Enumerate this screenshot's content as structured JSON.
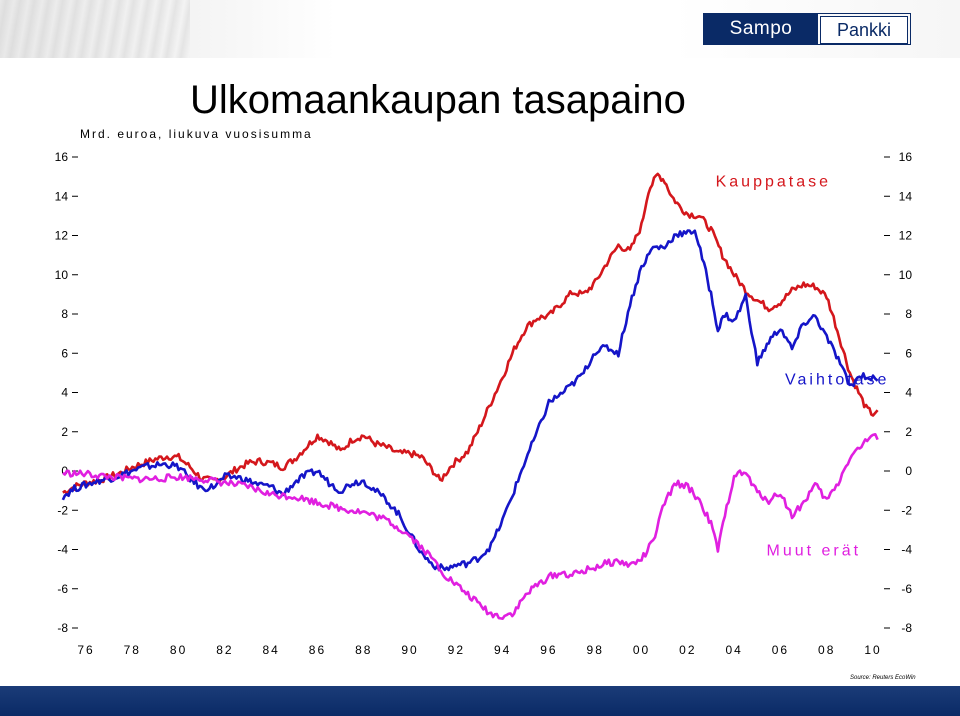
{
  "logo": {
    "left": "Sampo",
    "right": "Pankki"
  },
  "chart_data": {
    "type": "line",
    "title": "Ulkomaankaupan tasapaino",
    "subtitle": "Mrd. euroa, liukuva vuosisumma",
    "ylim": [
      -8,
      16
    ],
    "xlim": [
      1975,
      2010.5
    ],
    "grid": false,
    "y_ticks": [
      "-8",
      "-6",
      "-4",
      "-2",
      "0",
      "2",
      "4",
      "6",
      "8",
      "10",
      "12",
      "14",
      "16"
    ],
    "x_ticks": [
      "76",
      "78",
      "80",
      "82",
      "84",
      "86",
      "88",
      "90",
      "92",
      "94",
      "96",
      "98",
      "00",
      "02",
      "04",
      "06",
      "08",
      "10"
    ],
    "source": "Source: Reuters EcoWin",
    "series": [
      {
        "name": "Kauppatase",
        "color": "#d4171c",
        "label_x": 2003.2,
        "label_y": 14.5,
        "points": [
          [
            1975.0,
            -1.1
          ],
          [
            1975.5,
            -0.8
          ],
          [
            1976.0,
            -0.6
          ],
          [
            1976.5,
            -0.5
          ],
          [
            1977.0,
            -0.3
          ],
          [
            1977.5,
            -0.1
          ],
          [
            1978.0,
            0.2
          ],
          [
            1978.5,
            0.4
          ],
          [
            1979.0,
            0.6
          ],
          [
            1979.5,
            0.75
          ],
          [
            1980.0,
            0.7
          ],
          [
            1980.5,
            0.2
          ],
          [
            1981.0,
            -0.4
          ],
          [
            1981.5,
            -0.5
          ],
          [
            1982.0,
            -0.3
          ],
          [
            1982.5,
            0.1
          ],
          [
            1983.0,
            0.4
          ],
          [
            1983.5,
            0.5
          ],
          [
            1984.0,
            0.4
          ],
          [
            1984.5,
            0.2
          ],
          [
            1985.0,
            0.6
          ],
          [
            1985.5,
            1.2
          ],
          [
            1986.0,
            1.8
          ],
          [
            1986.5,
            1.5
          ],
          [
            1987.0,
            1.0
          ],
          [
            1987.5,
            1.6
          ],
          [
            1988.0,
            1.8
          ],
          [
            1988.5,
            1.4
          ],
          [
            1989.0,
            1.2
          ],
          [
            1989.5,
            0.9
          ],
          [
            1990.0,
            0.9
          ],
          [
            1990.5,
            0.7
          ],
          [
            1991.0,
            0.0
          ],
          [
            1991.3,
            -0.5
          ],
          [
            1991.8,
            0.3
          ],
          [
            1992.5,
            1.0
          ],
          [
            1993.0,
            2.2
          ],
          [
            1993.5,
            3.5
          ],
          [
            1994.0,
            4.8
          ],
          [
            1994.5,
            6.2
          ],
          [
            1995.0,
            7.3
          ],
          [
            1995.5,
            7.8
          ],
          [
            1996.0,
            7.9
          ],
          [
            1996.5,
            8.5
          ],
          [
            1997.0,
            9.1
          ],
          [
            1997.5,
            9.0
          ],
          [
            1998.0,
            9.6
          ],
          [
            1998.5,
            10.6
          ],
          [
            1999.0,
            11.5
          ],
          [
            1999.5,
            11.2
          ],
          [
            2000.0,
            12.5
          ],
          [
            2000.3,
            14.3
          ],
          [
            2000.7,
            15.1
          ],
          [
            2001.0,
            14.8
          ],
          [
            2001.3,
            14.0
          ],
          [
            2001.7,
            13.4
          ],
          [
            2002.0,
            13.1
          ],
          [
            2002.5,
            13.0
          ],
          [
            2003.0,
            12.3
          ],
          [
            2003.5,
            11.0
          ],
          [
            2004.0,
            10.0
          ],
          [
            2004.5,
            9.2
          ],
          [
            2005.0,
            8.7
          ],
          [
            2005.5,
            8.3
          ],
          [
            2006.0,
            8.6
          ],
          [
            2006.5,
            9.2
          ],
          [
            2007.0,
            9.5
          ],
          [
            2007.5,
            9.4
          ],
          [
            2008.0,
            8.9
          ],
          [
            2008.3,
            7.8
          ],
          [
            2008.7,
            6.2
          ],
          [
            2009.0,
            5.0
          ],
          [
            2009.3,
            4.2
          ],
          [
            2009.7,
            3.2
          ],
          [
            2010.0,
            2.9
          ],
          [
            2010.2,
            3.1
          ]
        ]
      },
      {
        "name": "Vaihtotase",
        "color": "#1515c8",
        "label_x": 2006.2,
        "label_y": 4.4,
        "points": [
          [
            1975.0,
            -1.3
          ],
          [
            1975.5,
            -0.9
          ],
          [
            1976.0,
            -0.7
          ],
          [
            1976.5,
            -0.5
          ],
          [
            1977.0,
            -0.4
          ],
          [
            1977.5,
            -0.2
          ],
          [
            1978.0,
            0.0
          ],
          [
            1978.5,
            0.2
          ],
          [
            1979.0,
            0.3
          ],
          [
            1979.5,
            0.35
          ],
          [
            1980.0,
            0.2
          ],
          [
            1980.5,
            -0.4
          ],
          [
            1981.0,
            -0.9
          ],
          [
            1981.5,
            -0.8
          ],
          [
            1982.0,
            -0.3
          ],
          [
            1982.5,
            -0.3
          ],
          [
            1983.0,
            -0.5
          ],
          [
            1983.5,
            -0.7
          ],
          [
            1984.0,
            -0.8
          ],
          [
            1984.5,
            -1.2
          ],
          [
            1985.0,
            -0.6
          ],
          [
            1985.5,
            -0.2
          ],
          [
            1986.0,
            0.0
          ],
          [
            1986.5,
            -0.6
          ],
          [
            1987.0,
            -1.0
          ],
          [
            1987.5,
            -0.6
          ],
          [
            1988.0,
            -0.5
          ],
          [
            1988.5,
            -1.0
          ],
          [
            1989.0,
            -1.5
          ],
          [
            1989.5,
            -2.2
          ],
          [
            1990.0,
            -3.2
          ],
          [
            1990.5,
            -4.2
          ],
          [
            1991.0,
            -4.8
          ],
          [
            1991.5,
            -5.0
          ],
          [
            1992.0,
            -4.8
          ],
          [
            1992.5,
            -4.7
          ],
          [
            1993.0,
            -4.4
          ],
          [
            1993.5,
            -3.8
          ],
          [
            1994.0,
            -2.5
          ],
          [
            1994.5,
            -1.0
          ],
          [
            1995.0,
            0.6
          ],
          [
            1995.5,
            2.0
          ],
          [
            1996.0,
            3.5
          ],
          [
            1996.5,
            3.9
          ],
          [
            1997.0,
            4.4
          ],
          [
            1997.5,
            5.0
          ],
          [
            1998.0,
            6.1
          ],
          [
            1998.5,
            6.3
          ],
          [
            1999.0,
            6.0
          ],
          [
            1999.5,
            8.5
          ],
          [
            2000.0,
            10.4
          ],
          [
            2000.5,
            11.4
          ],
          [
            2001.0,
            11.4
          ],
          [
            2001.5,
            12.1
          ],
          [
            2002.0,
            12.1
          ],
          [
            2002.3,
            12.3
          ],
          [
            2002.7,
            10.5
          ],
          [
            2003.0,
            9.0
          ],
          [
            2003.3,
            7.2
          ],
          [
            2003.6,
            8.0
          ],
          [
            2004.0,
            7.6
          ],
          [
            2004.5,
            8.9
          ],
          [
            2005.0,
            5.5
          ],
          [
            2005.5,
            6.6
          ],
          [
            2006.0,
            7.3
          ],
          [
            2006.5,
            6.2
          ],
          [
            2007.0,
            7.5
          ],
          [
            2007.5,
            7.9
          ],
          [
            2008.0,
            6.8
          ],
          [
            2008.5,
            5.7
          ],
          [
            2009.0,
            4.3
          ],
          [
            2009.5,
            4.9
          ],
          [
            2010.0,
            4.7
          ],
          [
            2010.2,
            4.6
          ]
        ]
      },
      {
        "name": "Muut erät",
        "color": "#e020e0",
        "label_x": 2005.4,
        "label_y": -4.3,
        "points": [
          [
            1975.0,
            -0.1
          ],
          [
            1976.0,
            -0.15
          ],
          [
            1977.0,
            -0.3
          ],
          [
            1978.0,
            -0.4
          ],
          [
            1979.0,
            -0.4
          ],
          [
            1980.0,
            -0.3
          ],
          [
            1981.0,
            -0.4
          ],
          [
            1982.0,
            -0.6
          ],
          [
            1983.0,
            -0.8
          ],
          [
            1984.0,
            -1.2
          ],
          [
            1985.0,
            -1.3
          ],
          [
            1986.0,
            -1.6
          ],
          [
            1987.0,
            -1.9
          ],
          [
            1988.0,
            -2.1
          ],
          [
            1989.0,
            -2.5
          ],
          [
            1990.0,
            -3.3
          ],
          [
            1990.5,
            -3.9
          ],
          [
            1991.0,
            -4.5
          ],
          [
            1991.5,
            -5.3
          ],
          [
            1992.0,
            -5.8
          ],
          [
            1992.5,
            -6.3
          ],
          [
            1993.0,
            -6.8
          ],
          [
            1993.5,
            -7.3
          ],
          [
            1994.0,
            -7.4
          ],
          [
            1994.5,
            -7.2
          ],
          [
            1995.0,
            -6.3
          ],
          [
            1995.5,
            -5.8
          ],
          [
            1996.0,
            -5.4
          ],
          [
            1996.5,
            -5.2
          ],
          [
            1997.0,
            -5.3
          ],
          [
            1997.5,
            -5.1
          ],
          [
            1998.0,
            -4.9
          ],
          [
            1998.5,
            -4.7
          ],
          [
            1999.0,
            -4.6
          ],
          [
            1999.5,
            -4.8
          ],
          [
            2000.0,
            -4.5
          ],
          [
            2000.5,
            -3.6
          ],
          [
            2001.0,
            -1.6
          ],
          [
            2001.5,
            -0.6
          ],
          [
            2002.0,
            -0.8
          ],
          [
            2002.5,
            -1.5
          ],
          [
            2003.0,
            -2.7
          ],
          [
            2003.3,
            -4.0
          ],
          [
            2003.6,
            -2.3
          ],
          [
            2004.0,
            -0.2
          ],
          [
            2004.5,
            -0.1
          ],
          [
            2005.0,
            -1.1
          ],
          [
            2005.5,
            -1.5
          ],
          [
            2006.0,
            -1.1
          ],
          [
            2006.5,
            -2.3
          ],
          [
            2007.0,
            -1.6
          ],
          [
            2007.5,
            -0.7
          ],
          [
            2008.0,
            -1.5
          ],
          [
            2008.5,
            -0.6
          ],
          [
            2009.0,
            0.7
          ],
          [
            2009.5,
            1.3
          ],
          [
            2010.0,
            1.8
          ],
          [
            2010.2,
            1.6
          ]
        ]
      }
    ]
  }
}
